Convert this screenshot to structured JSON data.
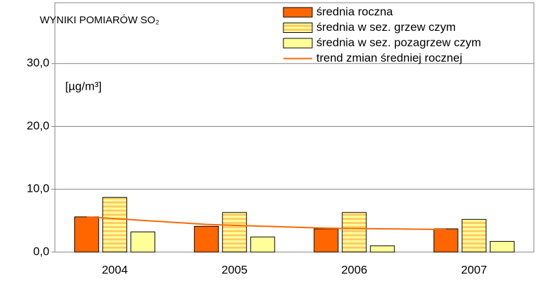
{
  "chart_data": {
    "type": "bar",
    "title": "WYNIKI POMIARÓW SO₂",
    "annotation": "[µg/m³]",
    "categories": [
      "2004",
      "2005",
      "2006",
      "2007"
    ],
    "series": [
      {
        "name": "średnia roczna",
        "color": "#ff6600",
        "values": [
          5.6,
          4.1,
          3.7,
          3.7
        ]
      },
      {
        "name": "średnia w  sez. grzew czym",
        "color": "#ffcc66",
        "pattern": "stripes",
        "values": [
          8.7,
          6.3,
          6.3,
          5.2
        ]
      },
      {
        "name": "średnia w  sez. pozagrzew czym",
        "color": "#ffff99",
        "values": [
          3.2,
          2.4,
          1.0,
          1.7
        ]
      },
      {
        "name": "trend zmian średniej rocznej",
        "type": "line",
        "color": "#ff6600",
        "values": [
          5.6,
          4.4,
          3.8,
          3.6
        ]
      }
    ],
    "ylim": [
      0,
      40
    ],
    "yticks": [
      {
        "value": 0,
        "label": "0,0"
      },
      {
        "value": 10,
        "label": "10,0"
      },
      {
        "value": 20,
        "label": "20,0"
      },
      {
        "value": 30,
        "label": "30,0"
      }
    ],
    "grid": true,
    "legend": "top-right"
  }
}
